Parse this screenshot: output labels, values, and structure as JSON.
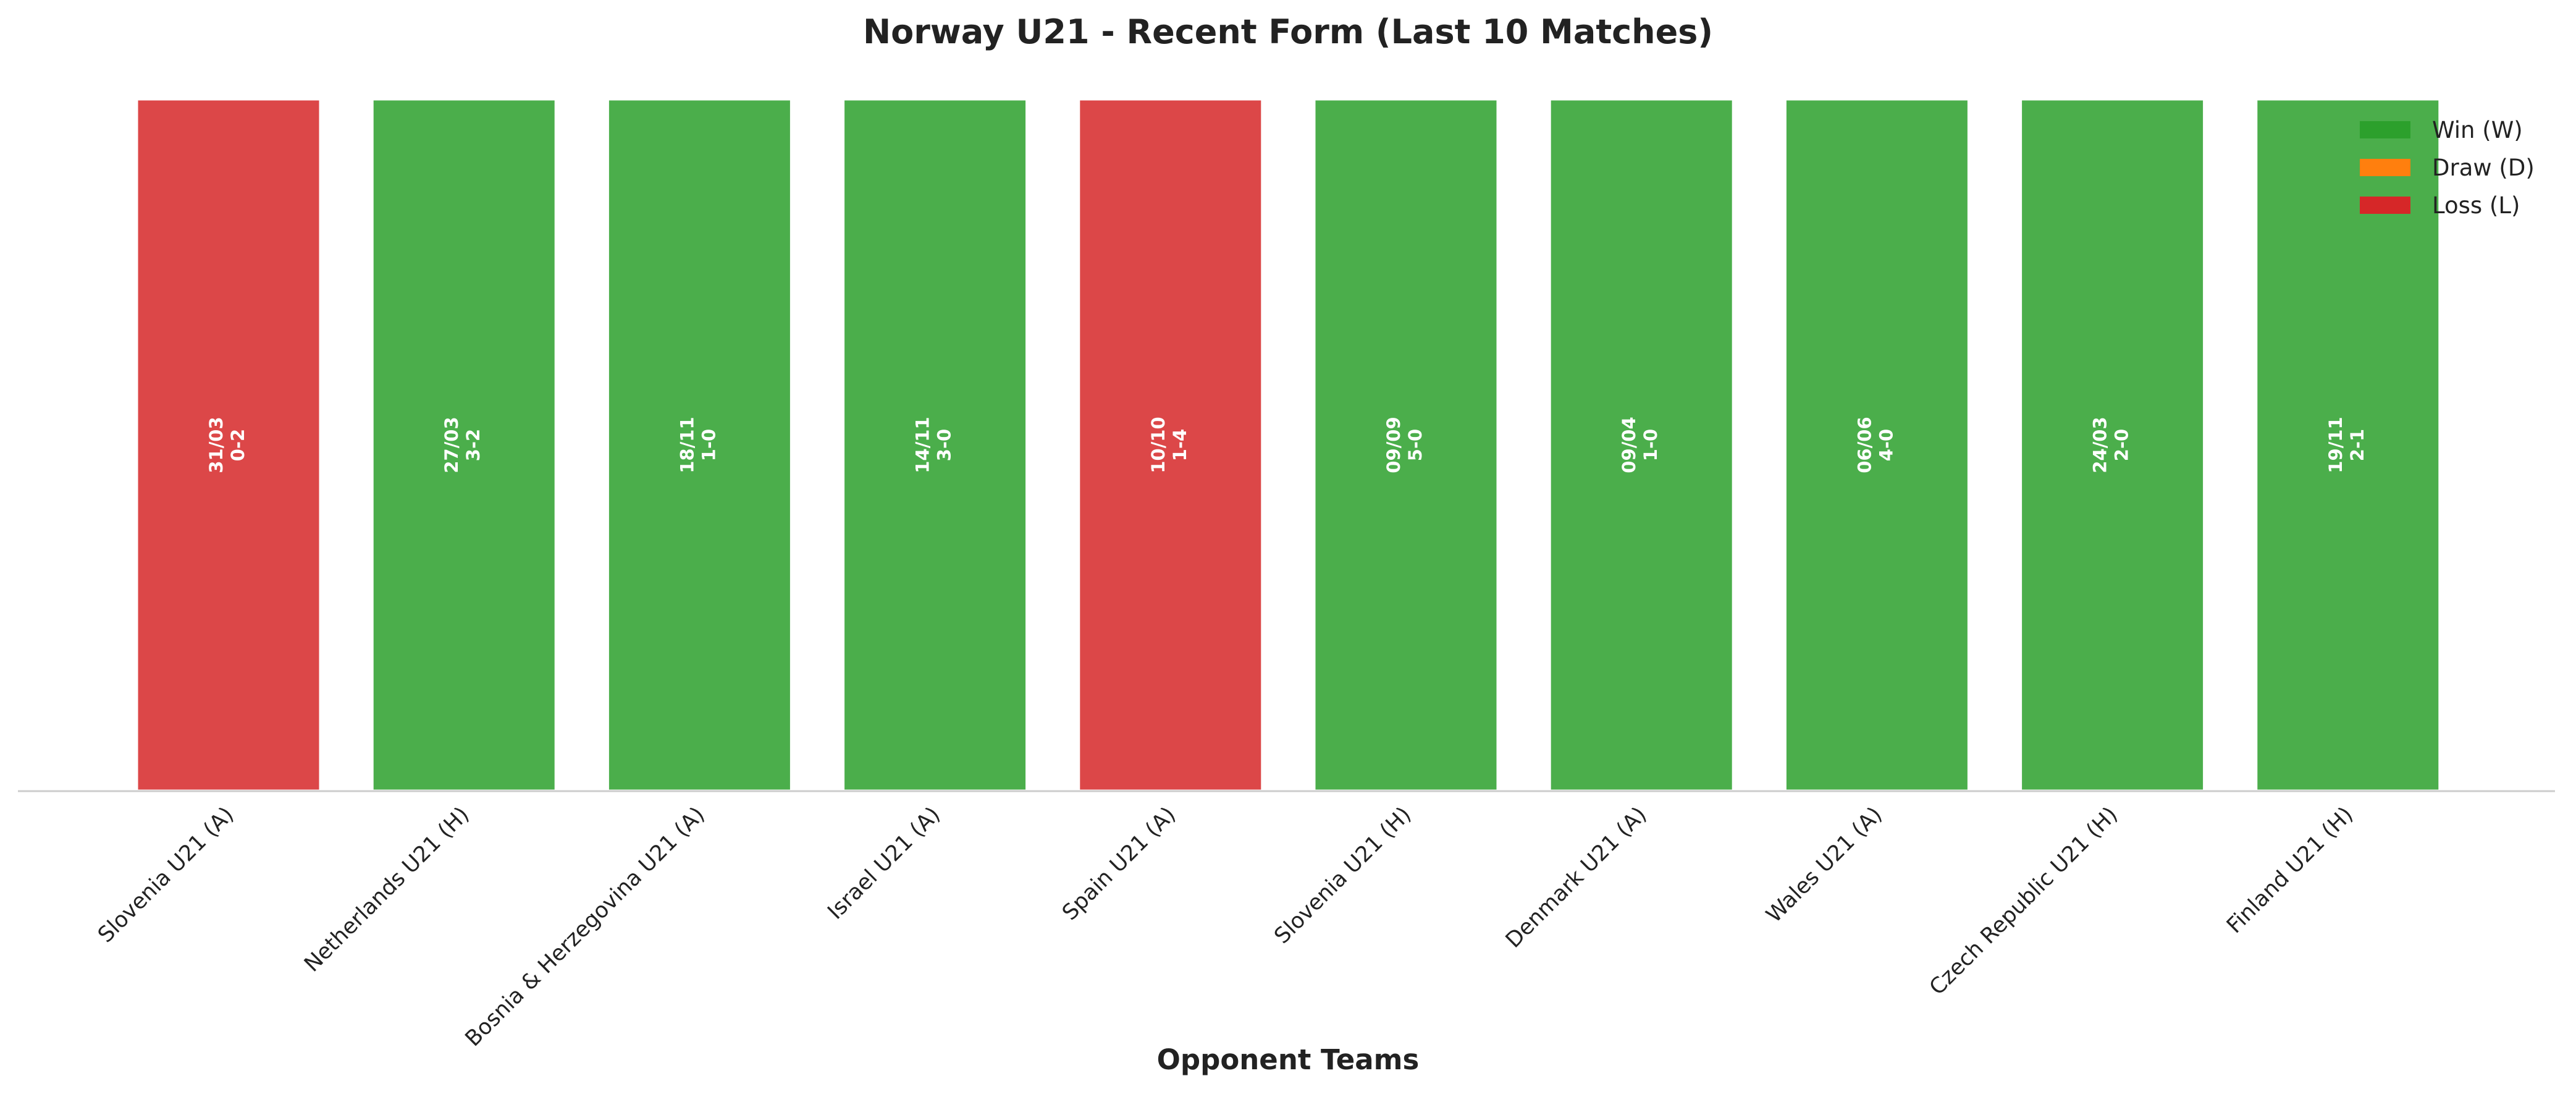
{
  "chart_data": {
    "type": "bar",
    "title": "Norway U21 - Recent Form (Last 10 Matches)",
    "x_label": "Opponent Teams",
    "categories": [
      "Slovenia U21 (A)",
      "Netherlands U21 (H)",
      "Bosnia & Herzegovina U21 (A)",
      "Israel U21 (A)",
      "Spain U21 (A)",
      "Slovenia U21 (H)",
      "Denmark U21 (A)",
      "Wales U21 (A)",
      "Czech Republic U21 (H)",
      "Finland U21 (H)"
    ],
    "values": [
      1,
      1,
      1,
      1,
      1,
      1,
      1,
      1,
      1,
      1
    ],
    "dates": [
      "31/03",
      "27/03",
      "18/11",
      "14/11",
      "10/10",
      "09/09",
      "09/04",
      "06/06",
      "24/03",
      "19/11"
    ],
    "scores": [
      "0-2",
      "3-2",
      "1-0",
      "3-0",
      "1-4",
      "5-0",
      "1-0",
      "4-0",
      "2-0",
      "2-1"
    ],
    "colors": [
      "#d62728",
      "#2ca02c",
      "#2ca02c",
      "#2ca02c",
      "#d62728",
      "#2ca02c",
      "#2ca02c",
      "#2ca02c",
      "#2ca02c",
      "#2ca02c"
    ],
    "ylim": [
      0,
      1
    ],
    "legend": [
      {
        "name": "Win (W)",
        "color": "#2ca02c"
      },
      {
        "name": "Draw (D)",
        "color": "#ff7f0e"
      },
      {
        "name": "Loss (L)",
        "color": "#d62728"
      }
    ],
    "legend_position": "upper right"
  }
}
